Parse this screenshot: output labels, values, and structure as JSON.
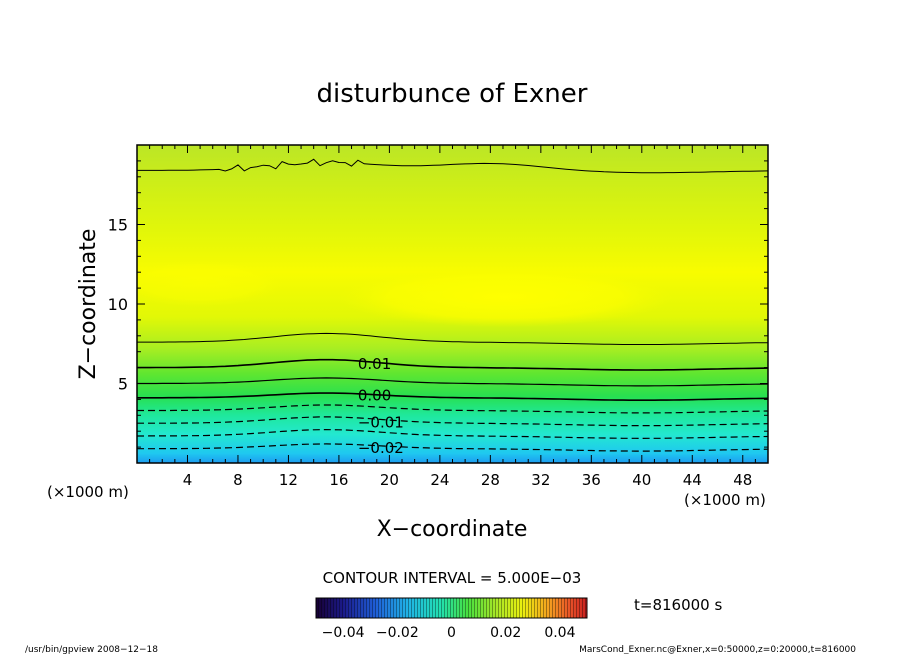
{
  "chart_data": {
    "type": "heatmap",
    "title": "disturbunce of Exner",
    "xlabel": "X−coordinate",
    "ylabel": "Z−coordinate",
    "x_unit_left": "(×1000 m)",
    "x_unit_right": "(×1000 m)",
    "xlim": [
      0,
      50
    ],
    "ylim": [
      0,
      20
    ],
    "x_ticks": [
      4,
      8,
      12,
      16,
      20,
      24,
      28,
      32,
      36,
      40,
      44,
      48
    ],
    "y_ticks": [
      5,
      10,
      15
    ],
    "contour_interval_label": "CONTOUR INTERVAL = 5.000E−03",
    "contour_labels": [
      {
        "text": "0.01",
        "x": 17.5,
        "z": 6.3,
        "value": 0.01
      },
      {
        "text": "0.00",
        "x": 17.5,
        "z": 4.3,
        "value": 0.0
      },
      {
        "text": "−0.01",
        "x": 17.5,
        "z": 2.6,
        "value": -0.01
      },
      {
        "text": "−0.02",
        "x": 17.5,
        "z": 1.0,
        "value": -0.02
      }
    ],
    "colorbar": {
      "min": -0.05,
      "max": 0.05,
      "tick_labels": [
        "−0.04",
        "−0.02",
        "0",
        "0.02",
        "0.04"
      ],
      "tick_values": [
        -0.04,
        -0.02,
        0,
        0.02,
        0.04
      ]
    },
    "time_label": "t=816000 s",
    "grid": false
  },
  "footer": {
    "left": "/usr/bin/gpview   2008−12−18",
    "right": "MarsCond_Exner.nc@Exner,x=0:50000,z=0:20000,t=816000"
  }
}
